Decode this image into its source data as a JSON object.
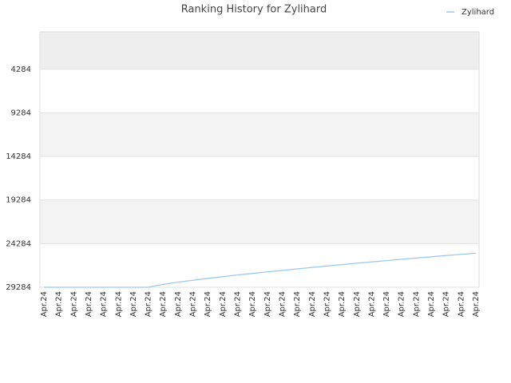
{
  "chart_data": {
    "type": "line",
    "title": "Ranking History for Zylihard",
    "categories": [
      "Apr.24",
      "Apr.24",
      "Apr.24",
      "Apr.24",
      "Apr.24",
      "Apr.24",
      "Apr.24",
      "Apr.24",
      "Apr.24",
      "Apr.24",
      "Apr.24",
      "Apr.24",
      "Apr.24",
      "Apr.24",
      "Apr.24",
      "Apr.24",
      "Apr.24",
      "Apr.24",
      "Apr.24",
      "Apr.24",
      "Apr.24",
      "Apr.24",
      "Apr.24",
      "Apr.24",
      "Apr.24",
      "Apr.24",
      "Apr.24",
      "Apr.24",
      "Apr.24",
      "Apr.24"
    ],
    "series": [
      {
        "name": "Zylihard",
        "color": "#9cc8ef",
        "values": [
          29284,
          29284,
          29284,
          29284,
          29284,
          29284,
          29284,
          29284,
          28950,
          28700,
          28480,
          28270,
          28070,
          27880,
          27700,
          27520,
          27350,
          27180,
          27010,
          26850,
          26690,
          26530,
          26380,
          26230,
          26080,
          25930,
          25790,
          25650,
          25510,
          25380
        ]
      }
    ],
    "ylim": [
      29284,
      0
    ],
    "yticks": [
      4284,
      9284,
      14284,
      19284,
      24284,
      29284
    ],
    "grid": true,
    "legend": "top-right"
  }
}
